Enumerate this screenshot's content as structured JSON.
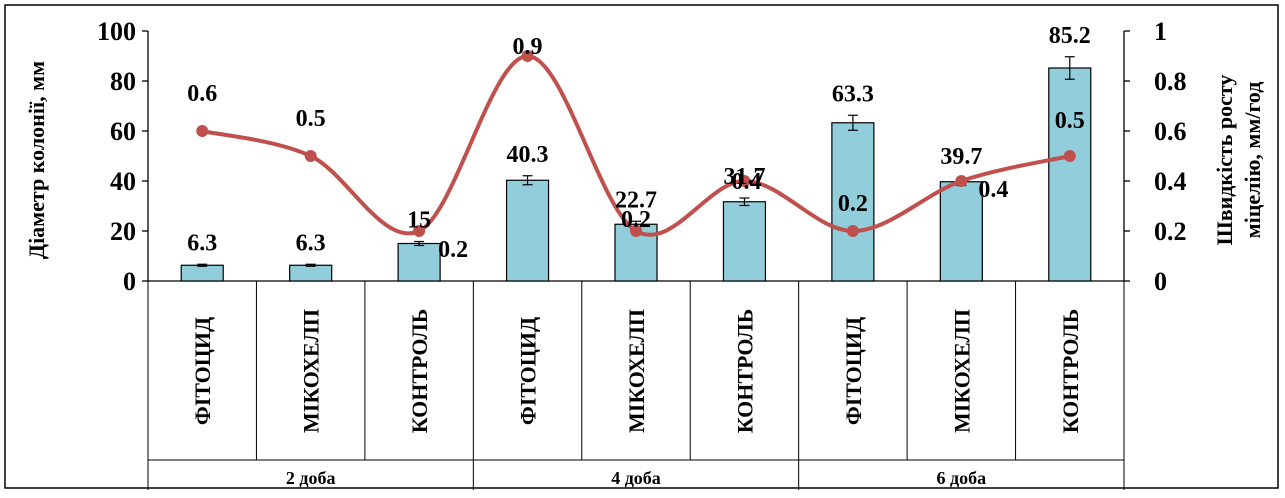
{
  "chart_data": {
    "type": "bar",
    "title": "",
    "groups": [
      "2 доба",
      "4 доба",
      "6 доба"
    ],
    "categories": [
      "ФІТОЦИД",
      "МІКОХЕЛП",
      "КОНТРОЛЬ",
      "ФІТОЦИД",
      "МІКОХЕЛП",
      "КОНТРОЛЬ",
      "ФІТОЦИД",
      "МІКОХЕЛП",
      "КОНТРОЛЬ"
    ],
    "series": [
      {
        "type": "bar",
        "axis": "left",
        "values": [
          6.3,
          6.3,
          15,
          40.3,
          22.7,
          31.7,
          63.3,
          39.7,
          85.2
        ],
        "value_labels": [
          "6.3",
          "6.3",
          "15",
          "40.3",
          "22.7",
          "31.7",
          "63.3",
          "39.7",
          "85.2"
        ],
        "error": [
          0.4,
          0.4,
          0.8,
          1.8,
          1.2,
          1.5,
          3.0,
          1.5,
          4.5
        ],
        "color": "#92CDDC"
      },
      {
        "type": "line",
        "axis": "right",
        "smooth": true,
        "values": [
          0.6,
          0.5,
          0.2,
          0.9,
          0.2,
          0.4,
          0.2,
          0.4,
          0.5
        ],
        "value_labels": [
          "0.6",
          "0.5",
          "0.2",
          "0.9",
          "0.2",
          "0.4",
          "0.2",
          "0.4",
          "0.5"
        ],
        "color": "#C0504D"
      }
    ],
    "ylabel": "Діаметр колонії, мм",
    "y2label_lines": [
      "Швидкість росту",
      "міцелію, мм/год"
    ],
    "ylim": [
      0,
      100
    ],
    "y2lim": [
      0,
      1
    ],
    "yticks": [
      "0",
      "20",
      "40",
      "60",
      "80",
      "100"
    ],
    "y2ticks": [
      "0",
      "0.2",
      "0.4",
      "0.6",
      "0.8",
      "1"
    ],
    "grid": false,
    "legend": "none"
  }
}
